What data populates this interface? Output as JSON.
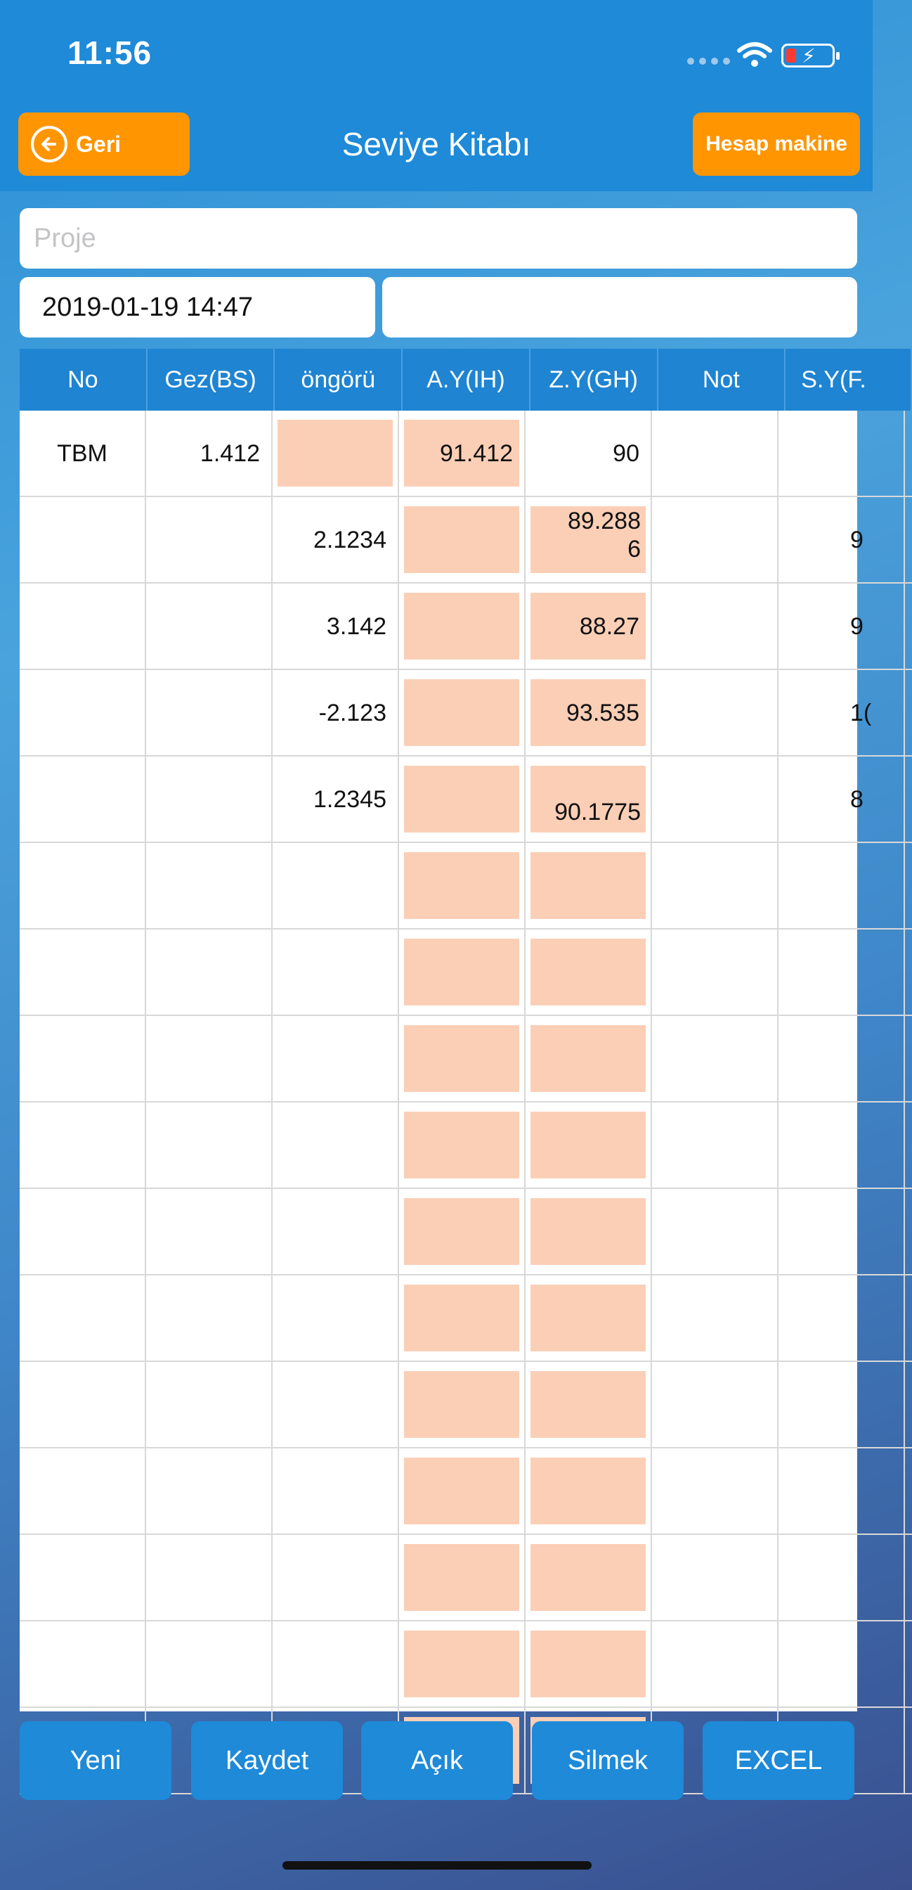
{
  "status": {
    "time": "11:56"
  },
  "nav": {
    "back_label": "Geri",
    "title": "Seviye Kitabı",
    "calc_label": "Hesap makine"
  },
  "form": {
    "project_placeholder": "Proje",
    "datetime": "2019-01-19 14:47",
    "extra_value": ""
  },
  "table": {
    "headers": [
      "No",
      "Gez(BS)",
      "öngörü",
      "A.Y(IH)",
      "Z.Y(GH)",
      "Not",
      "S.Y(F."
    ],
    "rows": [
      {
        "no": "TBM",
        "bs": "1.412",
        "ongoru": "",
        "ay": "91.412",
        "zy": "90",
        "not": "",
        "sy": ""
      },
      {
        "no": "",
        "bs": "",
        "ongoru": "2.1234",
        "ay": "",
        "zy": "89.288\n6",
        "not": "",
        "sy": "9"
      },
      {
        "no": "",
        "bs": "",
        "ongoru": "3.142",
        "ay": "",
        "zy": "88.27",
        "not": "",
        "sy": "9"
      },
      {
        "no": "",
        "bs": "",
        "ongoru": "-2.123",
        "ay": "",
        "zy": "93.535",
        "not": "",
        "sy": "1("
      },
      {
        "no": "",
        "bs": "",
        "ongoru": "1.2345",
        "ay": "",
        "zy": "90.1775",
        "not": "",
        "sy": "8"
      },
      {
        "no": "",
        "bs": "",
        "ongoru": "",
        "ay": "",
        "zy": "",
        "not": "",
        "sy": ""
      },
      {
        "no": "",
        "bs": "",
        "ongoru": "",
        "ay": "",
        "zy": "",
        "not": "",
        "sy": ""
      },
      {
        "no": "",
        "bs": "",
        "ongoru": "",
        "ay": "",
        "zy": "",
        "not": "",
        "sy": ""
      },
      {
        "no": "",
        "bs": "",
        "ongoru": "",
        "ay": "",
        "zy": "",
        "not": "",
        "sy": ""
      },
      {
        "no": "",
        "bs": "",
        "ongoru": "",
        "ay": "",
        "zy": "",
        "not": "",
        "sy": ""
      },
      {
        "no": "",
        "bs": "",
        "ongoru": "",
        "ay": "",
        "zy": "",
        "not": "",
        "sy": ""
      },
      {
        "no": "",
        "bs": "",
        "ongoru": "",
        "ay": "",
        "zy": "",
        "not": "",
        "sy": ""
      },
      {
        "no": "",
        "bs": "",
        "ongoru": "",
        "ay": "",
        "zy": "",
        "not": "",
        "sy": ""
      },
      {
        "no": "",
        "bs": "",
        "ongoru": "",
        "ay": "",
        "zy": "",
        "not": "",
        "sy": ""
      },
      {
        "no": "",
        "bs": "",
        "ongoru": "",
        "ay": "",
        "zy": "",
        "not": "",
        "sy": ""
      },
      {
        "no": "",
        "bs": "",
        "ongoru": "",
        "ay": "",
        "zy": "",
        "not": "",
        "sy": ""
      }
    ]
  },
  "toolbar": {
    "new_label": "Yeni",
    "save_label": "Kaydet",
    "open_label": "Açık",
    "delete_label": "Silmek",
    "excel_label": "EXCEL"
  },
  "colors": {
    "primary": "#1e8ad8",
    "accent": "#ff9500",
    "highlight_cell": "#fbcfb6"
  }
}
